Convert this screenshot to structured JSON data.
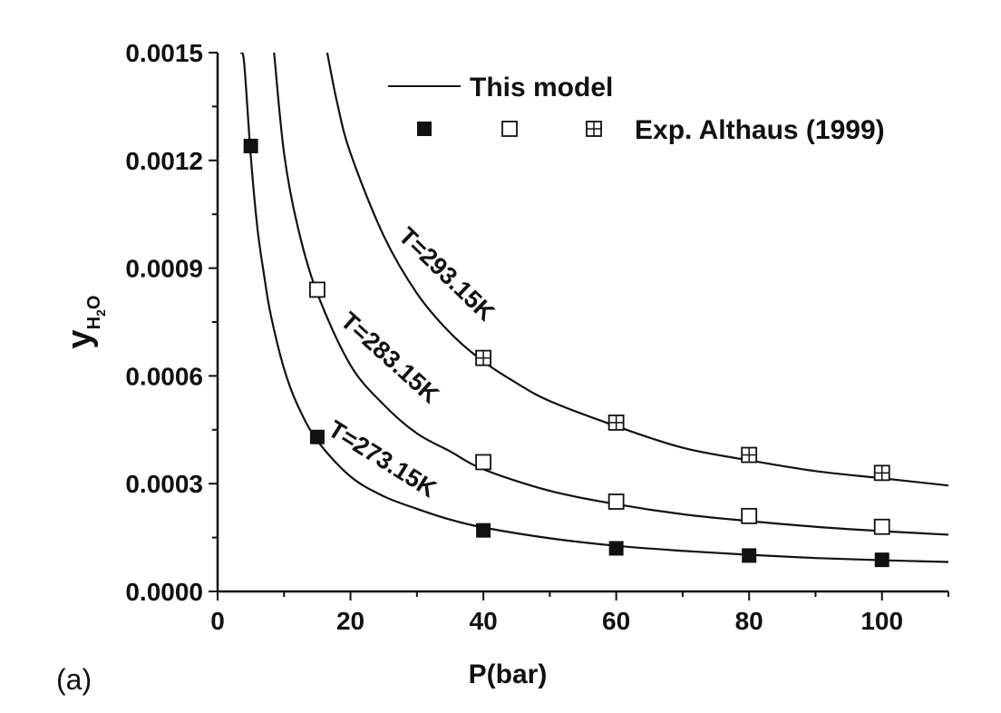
{
  "panel_label": "(a)",
  "chart_data": {
    "type": "line",
    "xlabel": "P(bar)",
    "ylabel": {
      "base": "y",
      "sub1": "H",
      "sub2": "2",
      "sub3": "O"
    },
    "xlim": [
      0,
      110
    ],
    "ylim": [
      0,
      0.0015
    ],
    "x_ticks": [
      0,
      20,
      40,
      60,
      80,
      100
    ],
    "x_tick_labels": [
      "0",
      "20",
      "40",
      "60",
      "80",
      "100"
    ],
    "y_ticks": [
      0,
      0.0003,
      0.0006,
      0.0009,
      0.0012,
      0.0015
    ],
    "y_tick_labels": [
      "0.0000",
      "0.0003",
      "0.0006",
      "0.0009",
      "0.0012",
      "0.0015"
    ],
    "grid": false,
    "legend": {
      "position": "top-right",
      "line_label": "This model",
      "marker_label": "Exp. Althaus (1999)"
    },
    "series": [
      {
        "label": "T=273.15K",
        "marker": "filled-square",
        "model_x": [
          3.5,
          4,
          5,
          6,
          7,
          8,
          10,
          12,
          15,
          20,
          25,
          30,
          35,
          40,
          50,
          60,
          70,
          80,
          90,
          100,
          110
        ],
        "model_y": [
          0.0015,
          0.00147,
          0.00121,
          0.00101,
          0.00088,
          0.00077,
          0.00062,
          0.00052,
          0.00042,
          0.00032,
          0.000265,
          0.00023,
          0.0002,
          0.000178,
          0.000148,
          0.000127,
          0.000113,
          0.000102,
          9.3e-05,
          8.7e-05,
          8.2e-05
        ],
        "exp_x": [
          5,
          15,
          40,
          60,
          80,
          100
        ],
        "exp_y": [
          0.00124,
          0.00043,
          0.00017,
          0.00012,
          0.0001,
          8.8e-05
        ]
      },
      {
        "label": "T=283.15K",
        "marker": "open-square",
        "model_x": [
          8.5,
          10,
          12,
          15,
          20,
          25,
          30,
          35,
          40,
          50,
          60,
          70,
          80,
          90,
          100,
          110
        ],
        "model_y": [
          0.0015,
          0.00122,
          0.00102,
          0.00083,
          0.00063,
          0.00052,
          0.00044,
          0.00039,
          0.00034,
          0.00028,
          0.000243,
          0.000215,
          0.000196,
          0.00018,
          0.000168,
          0.000158
        ],
        "exp_x": [
          15,
          40,
          60,
          80,
          100
        ],
        "exp_y": [
          0.00084,
          0.00036,
          0.00025,
          0.00021,
          0.00018
        ]
      },
      {
        "label": "T=293.15K",
        "marker": "crossed-square",
        "model_x": [
          16.5,
          18,
          20,
          25,
          30,
          35,
          40,
          45,
          50,
          60,
          70,
          80,
          90,
          100,
          110
        ],
        "model_y": [
          0.0015,
          0.00136,
          0.00122,
          0.00099,
          0.00083,
          0.00072,
          0.00064,
          0.00058,
          0.00053,
          0.00046,
          0.0004,
          0.000365,
          0.000335,
          0.000315,
          0.000295
        ],
        "exp_x": [
          40,
          60,
          80,
          100
        ],
        "exp_y": [
          0.00065,
          0.00047,
          0.00038,
          0.00033
        ]
      }
    ]
  }
}
